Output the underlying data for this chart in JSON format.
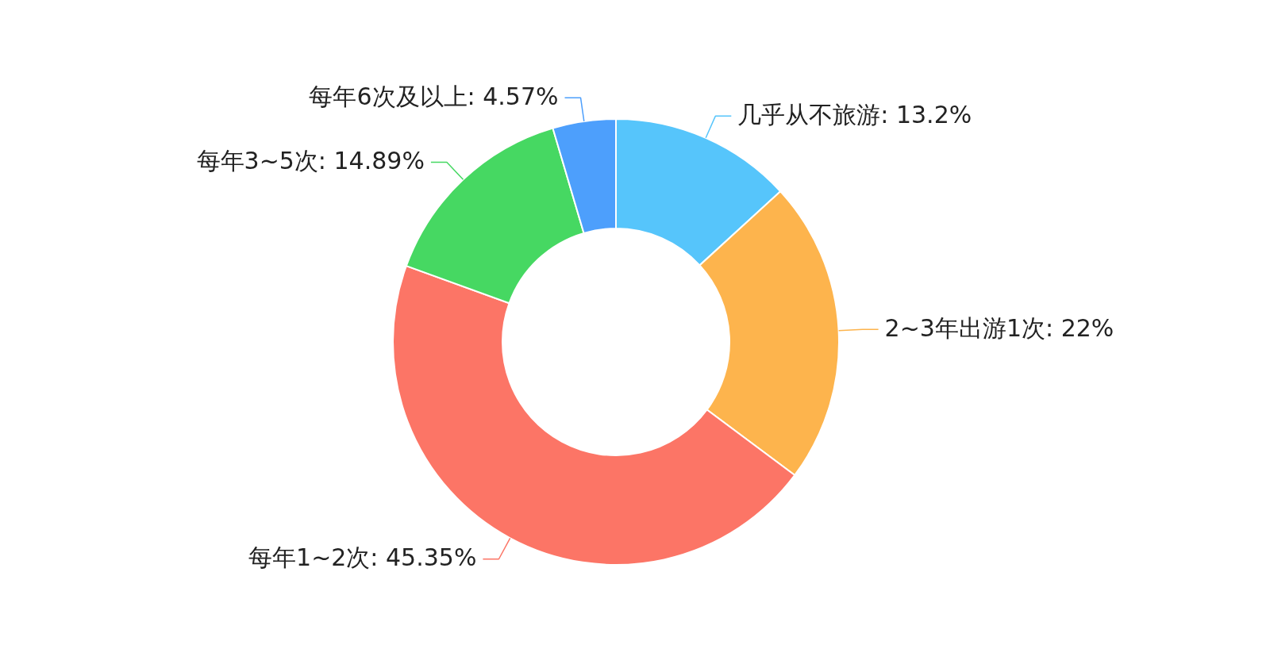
{
  "chart_data": {
    "type": "donut",
    "categories": [
      "几乎从不旅游",
      "2~3年出游1次",
      "每年1~2次",
      "每年3~5次",
      "每年6次及以上"
    ],
    "values": [
      13.2,
      22,
      45.35,
      14.89,
      4.57
    ],
    "colors": [
      "#56c5fb",
      "#fdb44d",
      "#fc7566",
      "#46d862",
      "#4d9ffc"
    ],
    "value_labels": [
      ": 13.2%",
      ": 22%",
      ": 45.35%",
      ": 14.89%",
      ": 4.57%"
    ]
  }
}
